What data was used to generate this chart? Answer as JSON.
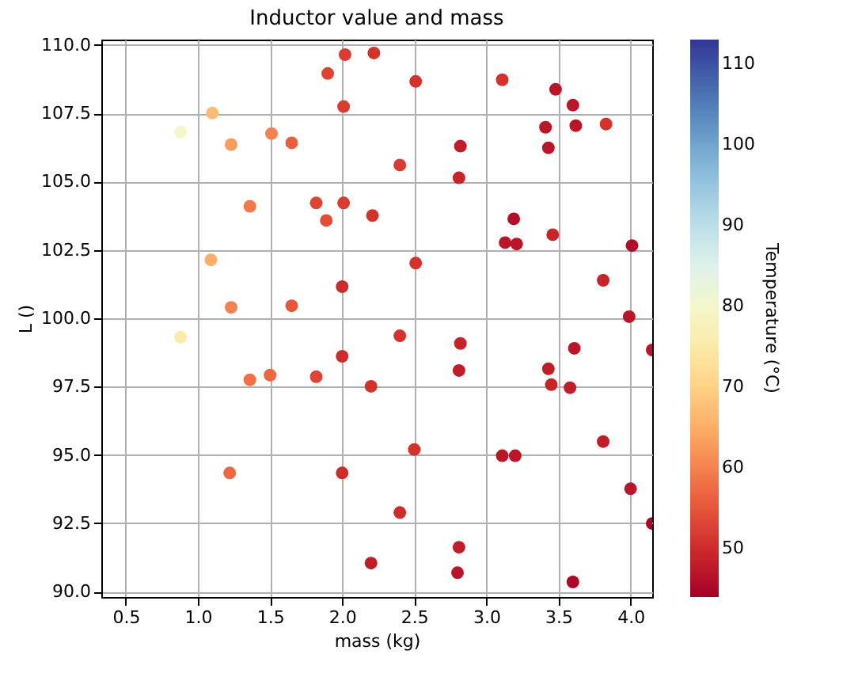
{
  "chart_data": {
    "type": "scatter",
    "title": "Inductor value and mass",
    "xlabel": "mass (kg)",
    "ylabel": "L ()",
    "clabel": "Temperature (°C)",
    "xlim": [
      0.33,
      4.15
    ],
    "xticks": [
      0.5,
      {
        "value": 1,
        "label": "1.0"
      },
      1.5,
      {
        "value": 2,
        "label": "2.0"
      },
      2.5,
      {
        "value": 3,
        "label": "3.0"
      },
      3.5,
      {
        "value": 4,
        "label": "4.0"
      }
    ],
    "ylim": [
      89.8,
      110.2
    ],
    "yticks": [
      {
        "value": 90,
        "label": "90.0"
      },
      92.5,
      {
        "value": 95,
        "label": "95.0"
      },
      97.5,
      {
        "value": 100,
        "label": "100.0"
      },
      102.5,
      {
        "value": 105,
        "label": "105.0"
      },
      107.5,
      {
        "value": 110,
        "label": "110.0"
      }
    ],
    "clim": [
      44,
      113
    ],
    "cticks": [
      50,
      60,
      70,
      80,
      90,
      100,
      110
    ],
    "grid": true,
    "x": [
      2.02,
      2.22,
      1.9,
      2.01,
      1.1,
      0.88,
      1.51,
      1.23,
      1.65,
      2.51,
      3.11,
      3.48,
      3.6,
      3.41,
      3.62,
      3.83,
      2.82,
      3.43,
      2.4,
      2.81,
      1.36,
      1.82,
      2.01,
      1.89,
      2.21,
      3.19,
      3.13,
      3.21,
      3.46,
      4.01,
      1.09,
      2.0,
      2.51,
      3.81,
      1.23,
      1.65,
      3.99,
      0.88,
      2.4,
      2.82,
      3.61,
      4.15,
      2.0,
      2.81,
      3.43,
      3.45,
      3.58,
      2.2,
      1.36,
      1.5,
      1.82,
      3.81,
      2.5,
      3.11,
      3.2,
      1.22,
      2.0,
      4.0,
      4.15,
      2.4,
      2.81,
      2.2,
      2.8,
      3.6
    ],
    "values": [
      109.65,
      109.71,
      108.96,
      107.75,
      107.51,
      106.82,
      106.76,
      106.36,
      106.42,
      108.67,
      108.73,
      108.38,
      107.8,
      106.99,
      107.05,
      107.11,
      106.3,
      106.24,
      105.61,
      105.14,
      104.1,
      104.22,
      104.22,
      103.58,
      103.76,
      103.64,
      102.77,
      102.72,
      103.06,
      102.66,
      102.14,
      101.16,
      102.02,
      101.39,
      100.4,
      100.46,
      100.06,
      99.31,
      99.36,
      99.08,
      98.9,
      98.84,
      98.61,
      98.09,
      98.15,
      97.57,
      97.46,
      97.51,
      97.75,
      97.92,
      97.86,
      95.49,
      95.2,
      94.97,
      94.97,
      94.34,
      94.34,
      93.76,
      92.49,
      92.89,
      91.62,
      91.04,
      90.69,
      90.35
    ],
    "cvalues": [
      52,
      51,
      53,
      52,
      67,
      80,
      60,
      63,
      56,
      51,
      51,
      47,
      47,
      47,
      47,
      51,
      48,
      47,
      52,
      49,
      59,
      53,
      52,
      54,
      51,
      46,
      47,
      47,
      49,
      46,
      65,
      50,
      51,
      49,
      60,
      55,
      47,
      75,
      51,
      49,
      47,
      47,
      50,
      48,
      48,
      49,
      48,
      51,
      58,
      57,
      53,
      48,
      51,
      47,
      47,
      57,
      50,
      47,
      45,
      50,
      48,
      48,
      47,
      45
    ]
  }
}
